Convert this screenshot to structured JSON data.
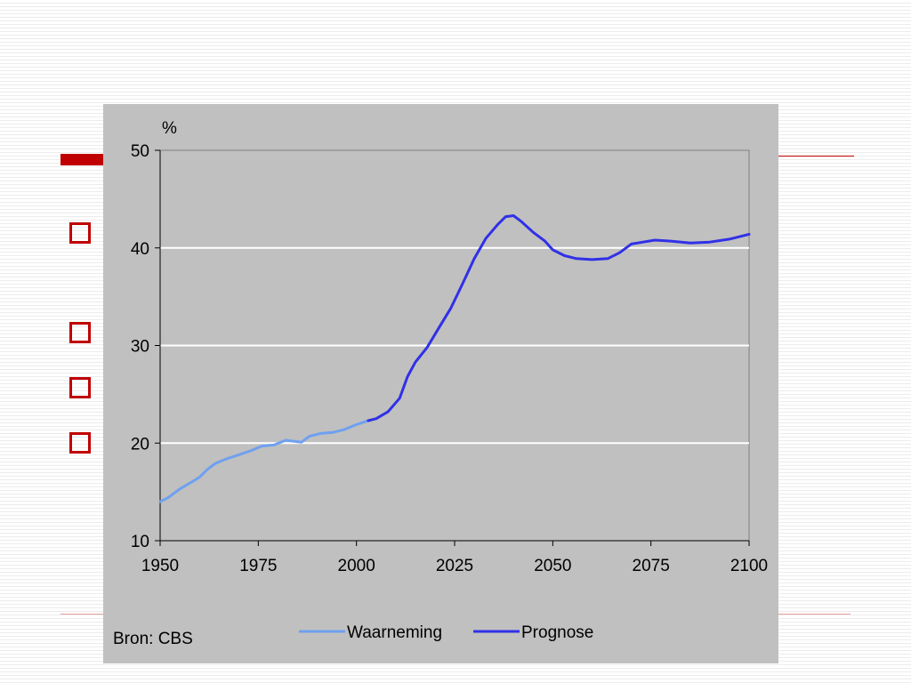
{
  "slide": {
    "bullets": [
      {
        "icon": "hollow-square-icon",
        "color": "#c00000"
      },
      {
        "icon": "hollow-square-icon",
        "color": "#c00000"
      },
      {
        "icon": "hollow-square-icon",
        "color": "#c00000"
      },
      {
        "icon": "hollow-square-icon",
        "color": "#c00000"
      }
    ],
    "accent_color": "#c00000"
  },
  "chart_data": {
    "type": "line",
    "title": "",
    "xlabel": "",
    "ylabel": "%",
    "source": "Bron: CBS",
    "xlim": [
      1950,
      2100
    ],
    "ylim": [
      10,
      50
    ],
    "x_ticks": [
      1950,
      1975,
      2000,
      2025,
      2050,
      2075,
      2100
    ],
    "y_ticks": [
      10,
      20,
      30,
      40,
      50
    ],
    "grid": "horizontal",
    "legend_position": "bottom",
    "background_color": "#c0c0c0",
    "series": [
      {
        "name": "Waarneming",
        "color": "#6fa0f0",
        "x": [
          1950,
          1952,
          1955,
          1958,
          1960,
          1962,
          1964,
          1967,
          1970,
          1973,
          1976,
          1979,
          1982,
          1984,
          1986,
          1988,
          1991,
          1994,
          1997,
          2000,
          2003
        ],
        "y": [
          14.0,
          14.4,
          15.3,
          16.0,
          16.5,
          17.3,
          17.9,
          18.4,
          18.8,
          19.2,
          19.7,
          19.8,
          20.3,
          20.2,
          20.1,
          20.7,
          21.0,
          21.1,
          21.4,
          21.9,
          22.3
        ]
      },
      {
        "name": "Prognose",
        "color": "#3030e8",
        "x": [
          2003,
          2005,
          2008,
          2011,
          2013,
          2015,
          2018,
          2021,
          2024,
          2027,
          2030,
          2033,
          2036,
          2038,
          2040,
          2042,
          2045,
          2048,
          2050,
          2053,
          2056,
          2060,
          2064,
          2067,
          2070,
          2073,
          2076,
          2080,
          2085,
          2090,
          2095,
          2100
        ],
        "y": [
          22.3,
          22.5,
          23.2,
          24.6,
          26.8,
          28.3,
          29.8,
          31.8,
          33.8,
          36.3,
          38.9,
          41.0,
          42.4,
          43.2,
          43.3,
          42.7,
          41.6,
          40.7,
          39.8,
          39.2,
          38.9,
          38.8,
          38.9,
          39.5,
          40.4,
          40.6,
          40.8,
          40.7,
          40.5,
          40.6,
          40.9,
          41.4
        ]
      }
    ]
  }
}
